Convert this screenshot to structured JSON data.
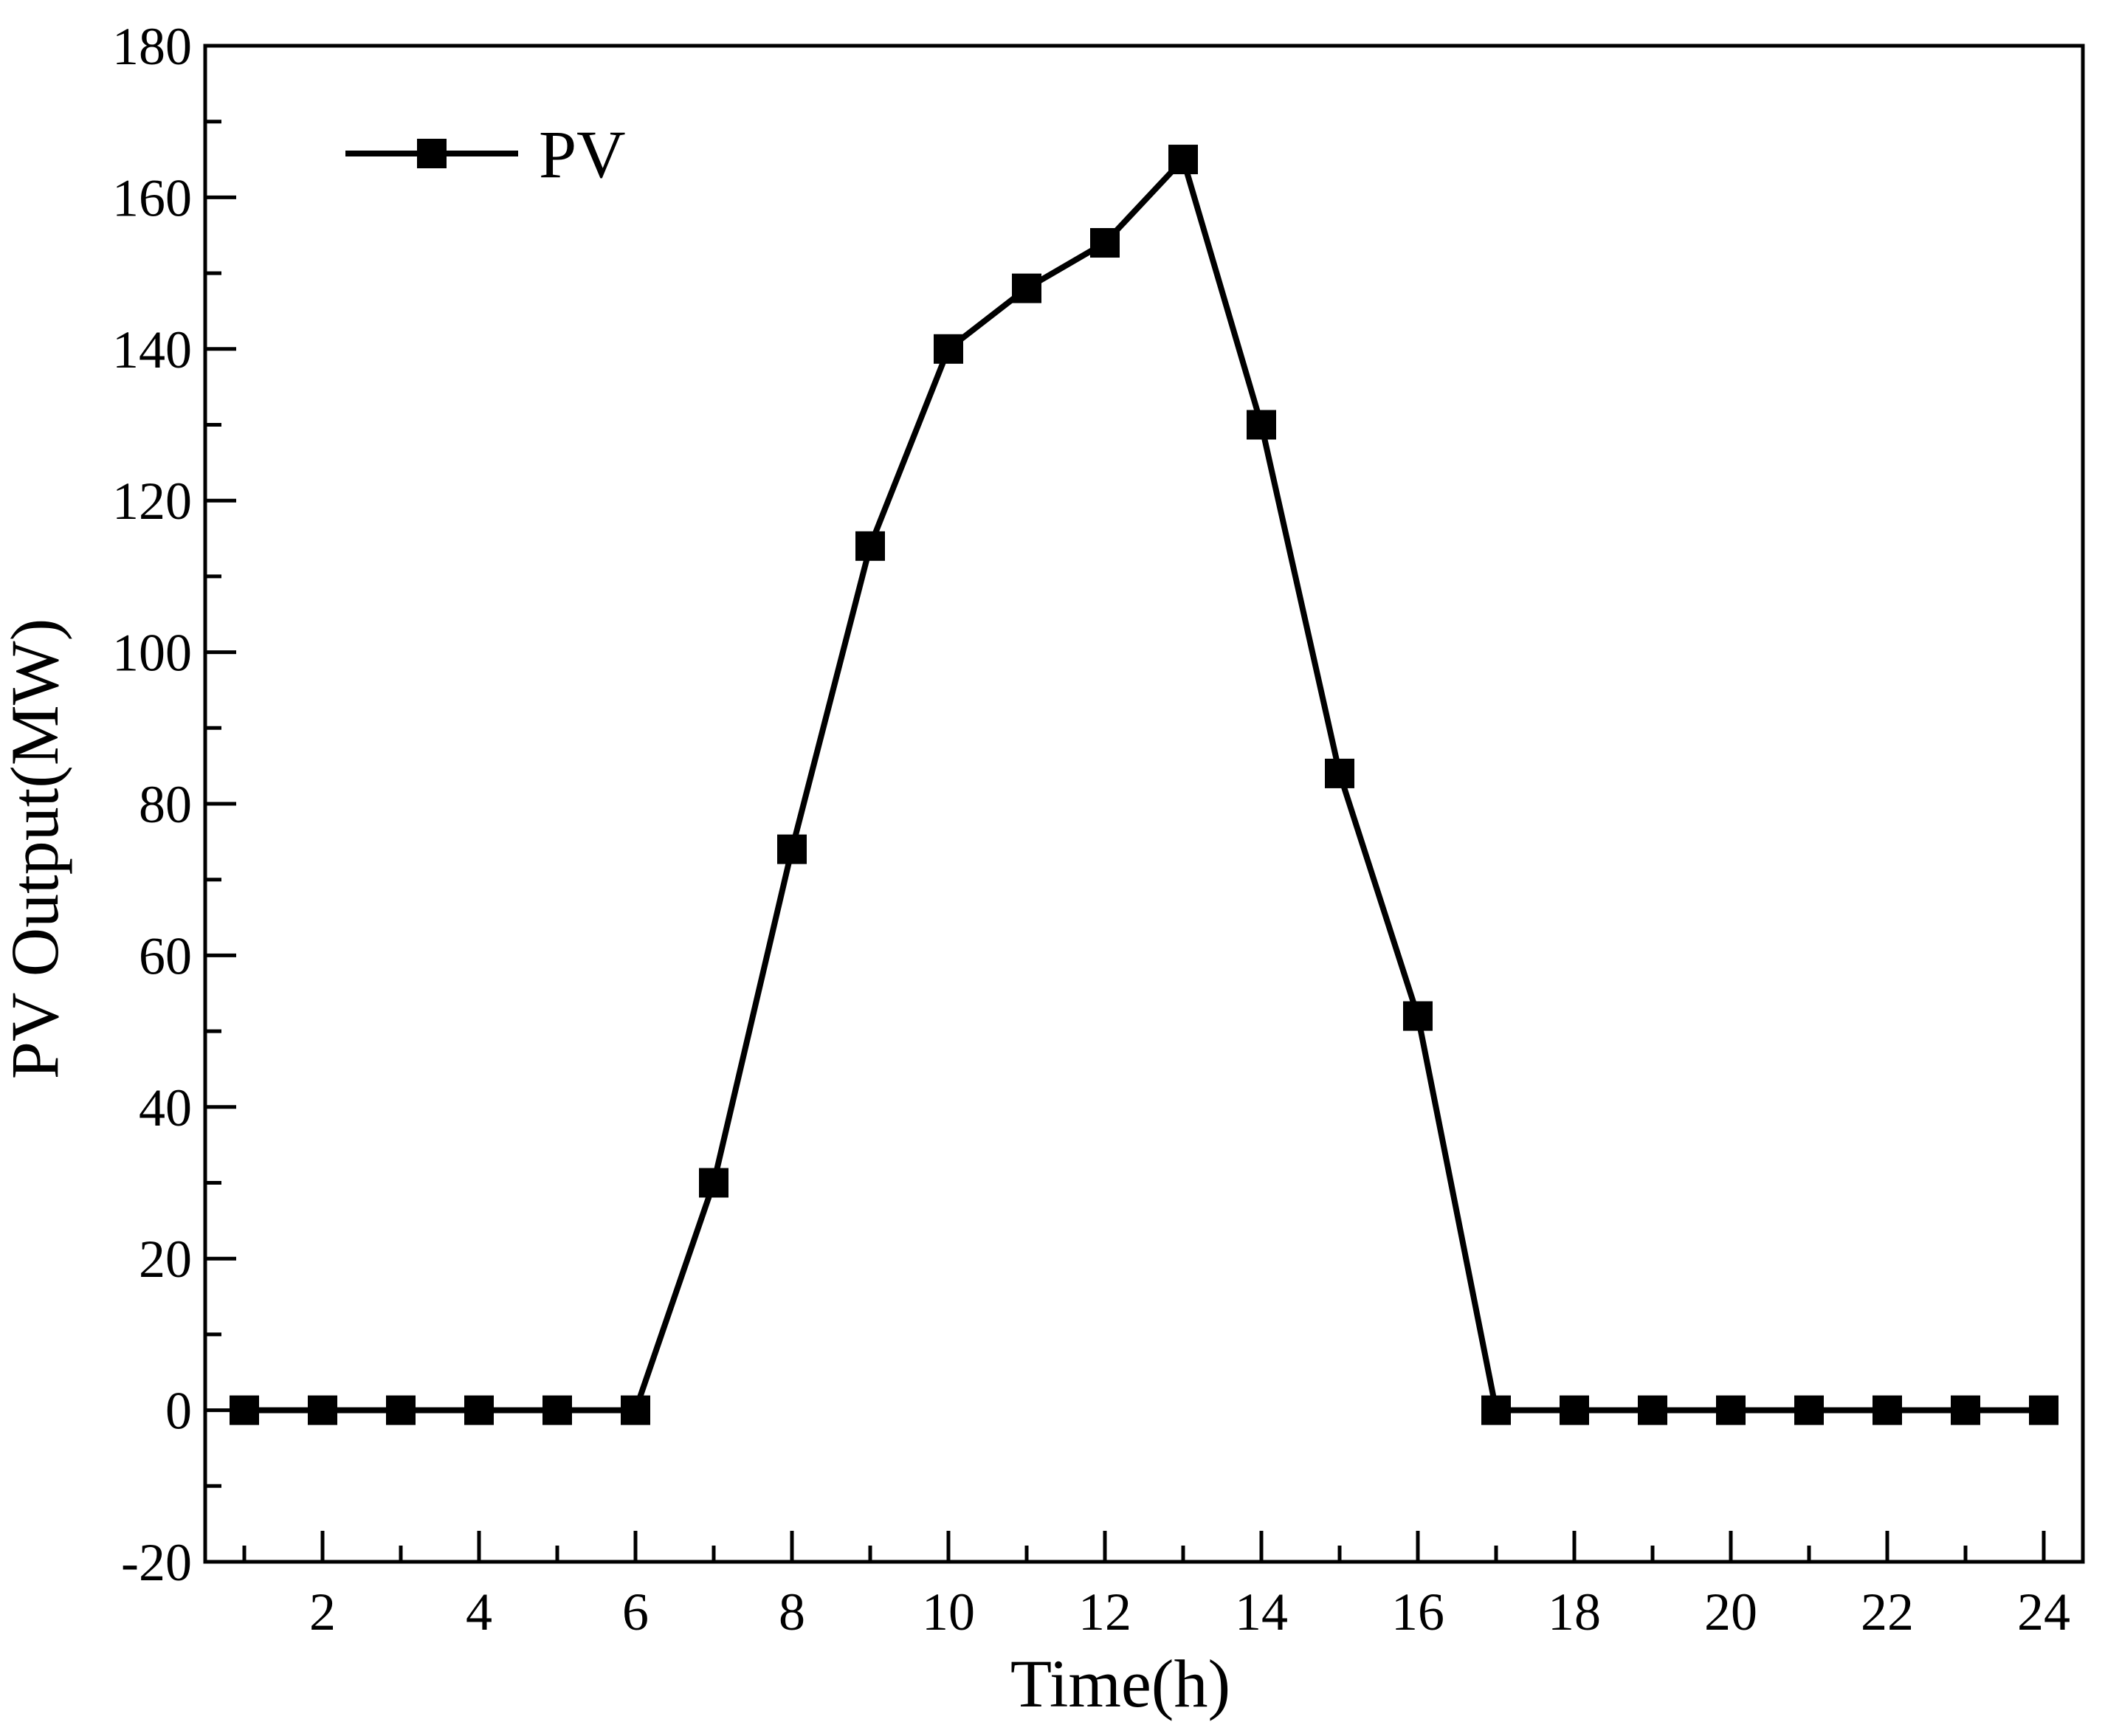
{
  "chart_data": {
    "type": "line",
    "title": "",
    "xlabel": "Time(h)",
    "ylabel": "PV Output(MW)",
    "xlim": [
      0.5,
      24.5
    ],
    "ylim": [
      -20,
      180
    ],
    "x_ticks": [
      2,
      4,
      6,
      8,
      10,
      12,
      14,
      16,
      18,
      20,
      22,
      24
    ],
    "x_tick_labels": [
      "2",
      "4",
      "6",
      "8",
      "10",
      "12",
      "14",
      "16",
      "18",
      "20",
      "22",
      "24"
    ],
    "y_ticks": [
      -20,
      0,
      20,
      40,
      60,
      80,
      100,
      120,
      140,
      160,
      180
    ],
    "y_tick_labels": [
      "-20",
      "0",
      "20",
      "40",
      "60",
      "80",
      "100",
      "120",
      "140",
      "160",
      "180"
    ],
    "grid": false,
    "legend_position": "top-left",
    "series": [
      {
        "name": "PV",
        "marker": "square",
        "color": "#000000",
        "x": [
          1,
          2,
          3,
          4,
          5,
          6,
          7,
          8,
          9,
          10,
          11,
          12,
          13,
          14,
          15,
          16,
          17,
          18,
          19,
          20,
          21,
          22,
          23,
          24
        ],
        "values": [
          0,
          0,
          0,
          0,
          0,
          0,
          30,
          74,
          114,
          140,
          148,
          154,
          165,
          130,
          84,
          52,
          0,
          0,
          0,
          0,
          0,
          0,
          0,
          0
        ]
      }
    ]
  }
}
